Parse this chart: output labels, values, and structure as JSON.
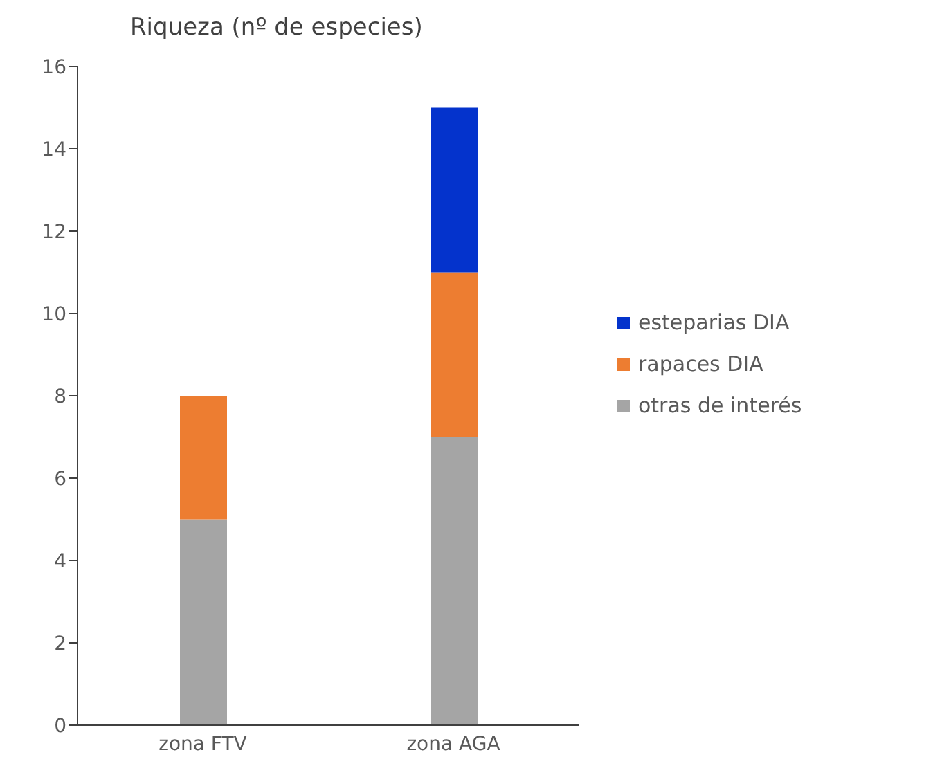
{
  "chart_data": {
    "type": "bar",
    "ylabel": "Riqueza (nº de especies)",
    "categories": [
      "zona FTV",
      "zona AGA"
    ],
    "stacked": true,
    "series": [
      {
        "name": "otras de interés",
        "color": "#a5a5a5",
        "values": [
          5,
          7
        ]
      },
      {
        "name": "rapaces DIA",
        "color": "#ed7d31",
        "values": [
          3,
          4
        ]
      },
      {
        "name": "esteparias DIA",
        "color": "#0433cc",
        "values": [
          null,
          4
        ]
      }
    ],
    "ylim": [
      0,
      16
    ],
    "yticks": [
      0,
      2,
      4,
      6,
      8,
      10,
      12,
      14,
      16
    ],
    "grid": false,
    "legend": "right"
  }
}
